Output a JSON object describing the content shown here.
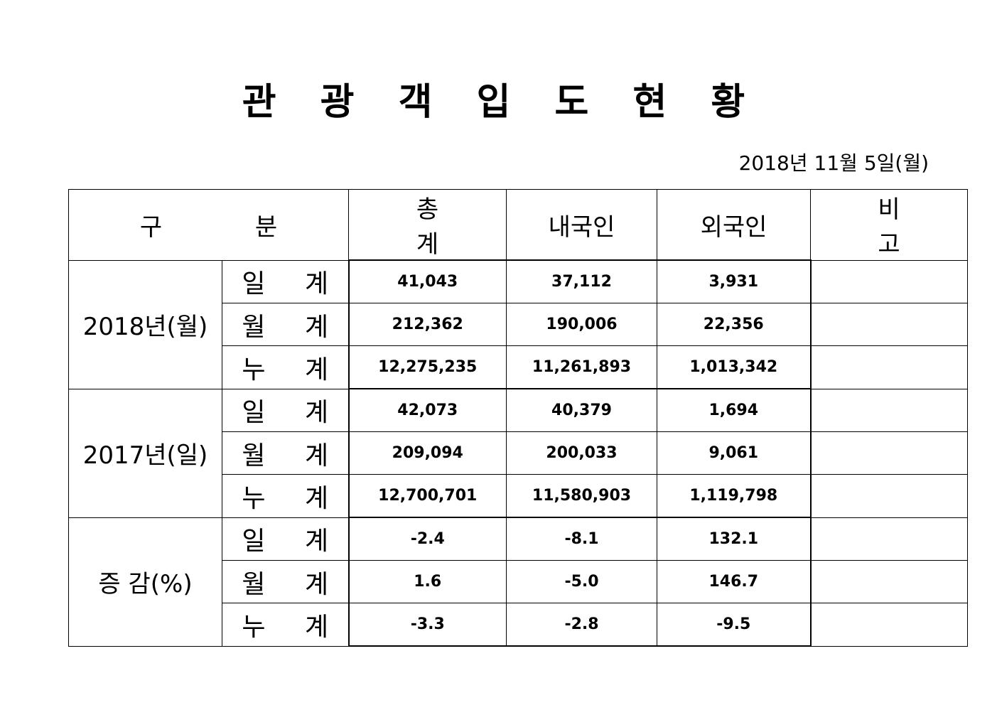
{
  "title": "관 광 객 입 도 현 황",
  "date": "2018년  11월  5일(월)",
  "headers": {
    "category": "구 분",
    "total": "총 계",
    "domestic": "내국인",
    "foreign": "외국인",
    "note": "비 고"
  },
  "groups": [
    {
      "label": "2018년(월)",
      "rows": [
        {
          "label": "일 계",
          "total": "41,043",
          "domestic": "37,112",
          "foreign": "3,931",
          "note": ""
        },
        {
          "label": "월 계",
          "total": "212,362",
          "domestic": "190,006",
          "foreign": "22,356",
          "note": ""
        },
        {
          "label": "누 계",
          "total": "12,275,235",
          "domestic": "11,261,893",
          "foreign": "1,013,342",
          "note": ""
        }
      ]
    },
    {
      "label": "2017년(일)",
      "rows": [
        {
          "label": "일 계",
          "total": "42,073",
          "domestic": "40,379",
          "foreign": "1,694",
          "note": ""
        },
        {
          "label": "월 계",
          "total": "209,094",
          "domestic": "200,033",
          "foreign": "9,061",
          "note": ""
        },
        {
          "label": "누 계",
          "total": "12,700,701",
          "domestic": "11,580,903",
          "foreign": "1,119,798",
          "note": ""
        }
      ]
    },
    {
      "label": "증 감(%)",
      "rows": [
        {
          "label": "일 계",
          "total": "-2.4",
          "domestic": "-8.1",
          "foreign": "132.1",
          "note": ""
        },
        {
          "label": "월 계",
          "total": "1.6",
          "domestic": "-5.0",
          "foreign": "146.7",
          "note": ""
        },
        {
          "label": "누 계",
          "total": "-3.3",
          "domestic": "-2.8",
          "foreign": "-9.5",
          "note": ""
        }
      ]
    }
  ]
}
